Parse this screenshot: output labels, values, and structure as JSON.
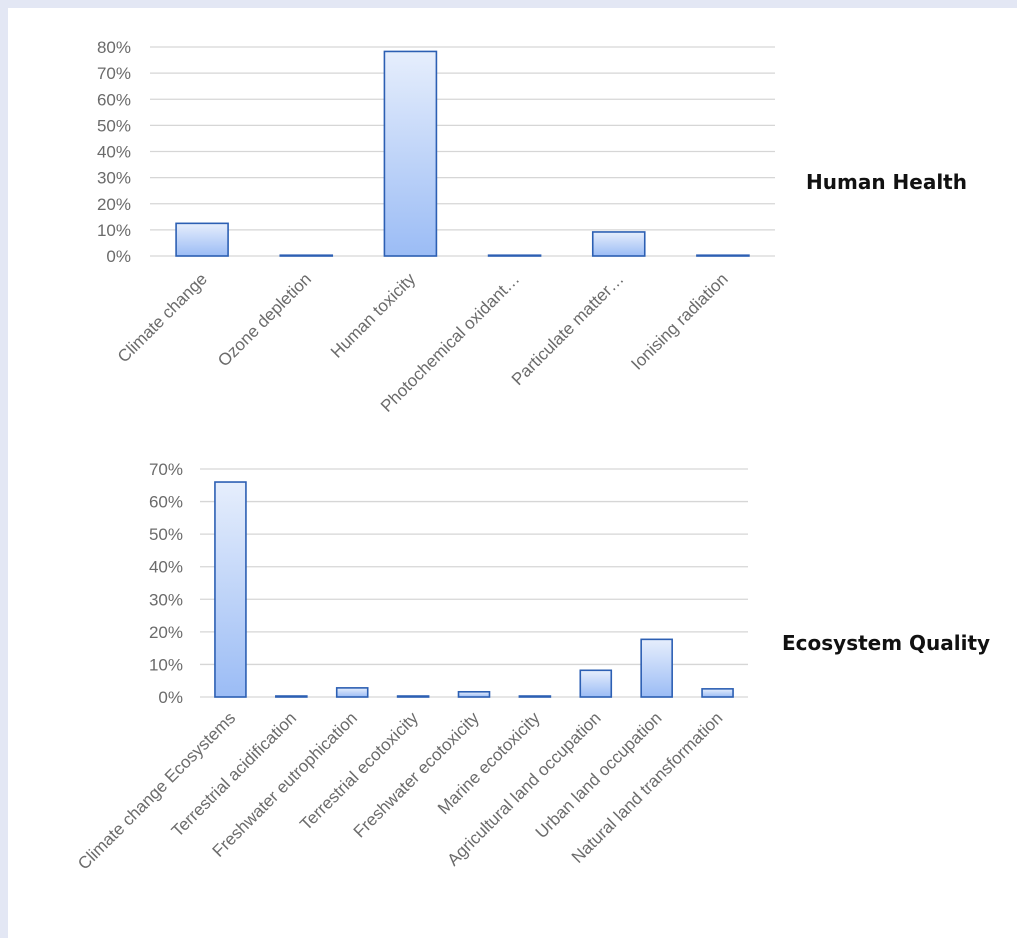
{
  "chart_data": [
    {
      "type": "bar",
      "title": "Human Health",
      "categories": [
        "Climate change",
        "Ozone depletion",
        "Human toxicity",
        "Photochemical oxidant…",
        "Particulate matter…",
        "Ionising radiation"
      ],
      "values": [
        12.5,
        0,
        78.3,
        0.3,
        9.2,
        0
      ],
      "yticks": [
        "0%",
        "10%",
        "20%",
        "30%",
        "40%",
        "50%",
        "60%",
        "70%",
        "80%"
      ],
      "ylim": [
        0,
        80
      ],
      "grid": true,
      "colors": {
        "bar_top": "#e6eefc",
        "bar_bottom": "#9bbcf5",
        "bar_edge": "#2c5fb3",
        "grid": "#d6d6d6"
      }
    },
    {
      "type": "bar",
      "title": "Ecosystem Quality",
      "categories": [
        "Climate change Ecosystems",
        "Terrestrial acidification",
        "Freshwater eutrophication",
        "Terrestrial ecotoxicity",
        "Freshwater ecotoxicity",
        "Marine ecotoxicity",
        "Agricultural land occupation",
        "Urban land occupation",
        "Natural land transformation"
      ],
      "values": [
        66,
        0.3,
        2.8,
        0.3,
        1.6,
        0.3,
        8.2,
        17.7,
        2.5
      ],
      "yticks": [
        "0%",
        "10%",
        "20%",
        "30%",
        "40%",
        "50%",
        "60%",
        "70%"
      ],
      "ylim": [
        0,
        70
      ],
      "grid": true,
      "colors": {
        "bar_top": "#e6eefc",
        "bar_bottom": "#9bbcf5",
        "bar_edge": "#2c5fb3",
        "grid": "#d6d6d6"
      }
    }
  ]
}
